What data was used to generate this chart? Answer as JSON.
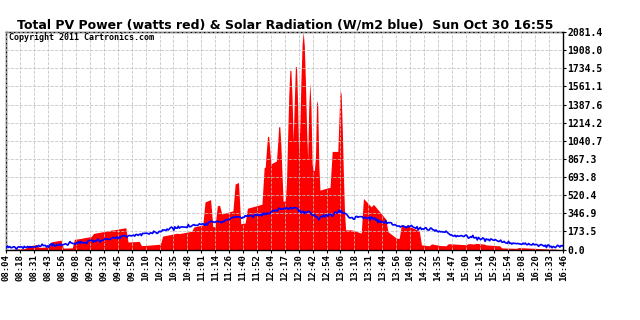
{
  "title": "Total PV Power (watts red) & Solar Radiation (W/m2 blue)  Sun Oct 30 16:55",
  "copyright": "Copyright 2011 Cartronics.com",
  "ymax": 2081.4,
  "yticks": [
    0.0,
    173.5,
    346.9,
    520.4,
    693.8,
    867.3,
    1040.7,
    1214.2,
    1387.6,
    1561.1,
    1734.5,
    1908.0,
    2081.4
  ],
  "bg_color": "#ffffff",
  "grid_color": "#c0c0c0",
  "pv_color": "red",
  "solar_color": "blue",
  "x_labels": [
    "08:04",
    "08:18",
    "08:31",
    "08:43",
    "08:56",
    "09:08",
    "09:20",
    "09:33",
    "09:45",
    "09:58",
    "10:10",
    "10:22",
    "10:35",
    "10:48",
    "11:01",
    "11:14",
    "11:26",
    "11:40",
    "11:52",
    "12:04",
    "12:17",
    "12:30",
    "12:42",
    "12:54",
    "13:06",
    "13:18",
    "13:31",
    "13:44",
    "13:56",
    "14:08",
    "14:22",
    "14:35",
    "14:47",
    "15:00",
    "15:14",
    "15:29",
    "15:54",
    "16:08",
    "16:20",
    "16:33",
    "16:46"
  ]
}
